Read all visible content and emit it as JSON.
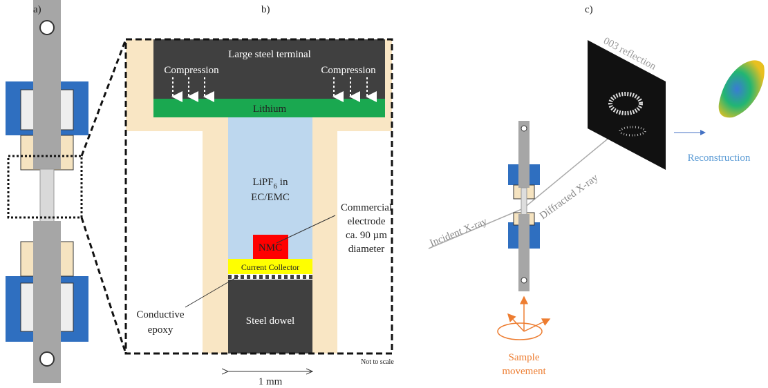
{
  "panels": {
    "a": {
      "label": "a)"
    },
    "b": {
      "label": "b)",
      "terminal": "Large steel terminal",
      "compression_left": "Compression",
      "compression_right": "Compression",
      "lithium": "Lithium",
      "electrolyte": {
        "formula": "LiPF",
        "subscript": "6",
        "suffix": " in",
        "solvent": "EC/EMC"
      },
      "electrode_note": [
        "Commercial",
        "electrode",
        "ca. 90 µm",
        "diameter"
      ],
      "nmc": "NMC",
      "current_collector": "Current Collector",
      "epoxy_note": [
        "Conductive",
        "epoxy"
      ],
      "dowel": "Steel dowel",
      "scale_note": "Not to scale",
      "scale_bar": "1 mm"
    },
    "c": {
      "label": "c)",
      "reflection": "003 reflection",
      "diffracted": "Diffracted X-ray",
      "incident": "Incident X-ray",
      "reconstruction": "Reconstruction",
      "movement": [
        "Sample",
        "movement"
      ]
    }
  }
}
